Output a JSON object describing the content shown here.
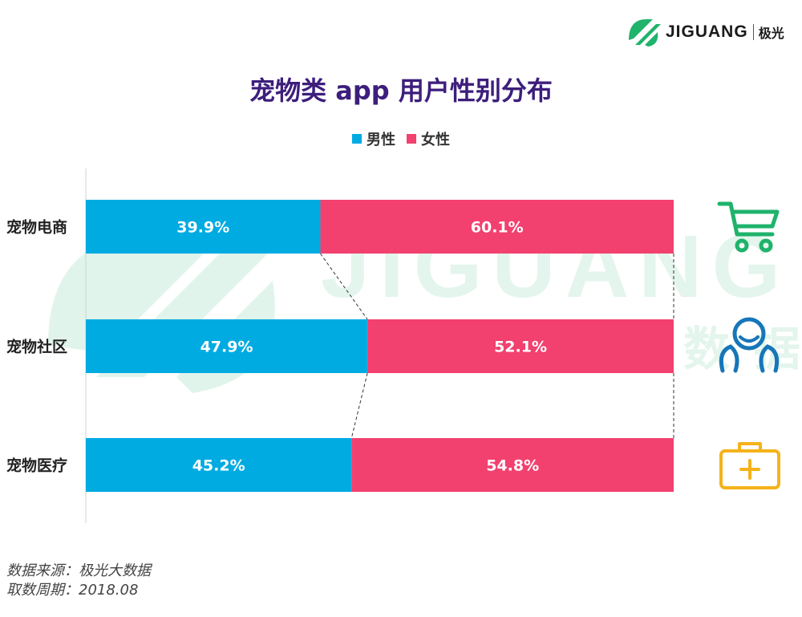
{
  "logo": {
    "brand": "JIGUANG",
    "brand_cn": "极光"
  },
  "title": "宠物类 app 用户性别分布",
  "legend": [
    {
      "label": "男性",
      "color": "#00abe2"
    },
    {
      "label": "女性",
      "color": "#f2416f"
    }
  ],
  "chart_data": {
    "type": "bar",
    "stacked": true,
    "orientation": "horizontal",
    "percent": true,
    "categories": [
      "宠物电商",
      "宠物社区",
      "宠物医疗"
    ],
    "series": [
      {
        "name": "男性",
        "values": [
          39.9,
          47.9,
          45.2
        ],
        "labels": [
          "39.9%",
          "47.9%",
          "45.2%"
        ],
        "color": "#00abe2"
      },
      {
        "name": "女性",
        "values": [
          60.1,
          52.1,
          54.8
        ],
        "labels": [
          "60.1%",
          "52.1%",
          "54.8%"
        ],
        "color": "#f2416f"
      }
    ],
    "xlim": [
      0,
      100
    ]
  },
  "icons": [
    "shopping-cart-icon",
    "community-icon",
    "medical-kit-icon"
  ],
  "watermark": {
    "brand": "JIGUANG",
    "cn": "极光大数据"
  },
  "source": {
    "line1": "数据来源：极光大数据",
    "line2": "取数周期：2018.08"
  }
}
